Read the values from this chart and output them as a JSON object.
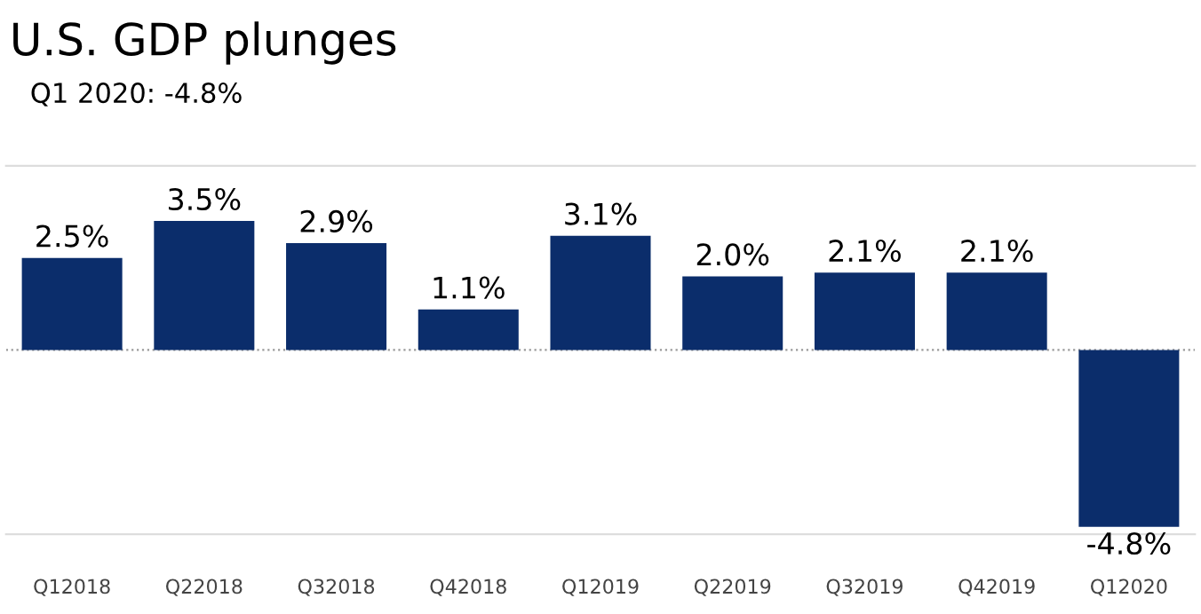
{
  "chart_data": {
    "type": "bar",
    "title": "U.S. GDP plunges",
    "subtitle": "Q1 2020: -4.8%",
    "categories": [
      "Q12018",
      "Q22018",
      "Q32018",
      "Q42018",
      "Q12019",
      "Q22019",
      "Q32019",
      "Q42019",
      "Q12020"
    ],
    "values": [
      2.5,
      3.5,
      2.9,
      1.1,
      3.1,
      2.0,
      2.1,
      2.1,
      -4.8
    ],
    "value_labels": [
      "2.5%",
      "3.5%",
      "2.9%",
      "1.1%",
      "3.1%",
      "2.0%",
      "2.1%",
      "2.1%",
      "-4.8%"
    ],
    "color": "#0b2d6b",
    "ylim": [
      -5,
      5
    ],
    "tick_labels": "x",
    "ref_lines": [
      {
        "axis": "y",
        "value": 0,
        "label": null,
        "color": "#999999",
        "line_style": "dotted"
      }
    ]
  }
}
